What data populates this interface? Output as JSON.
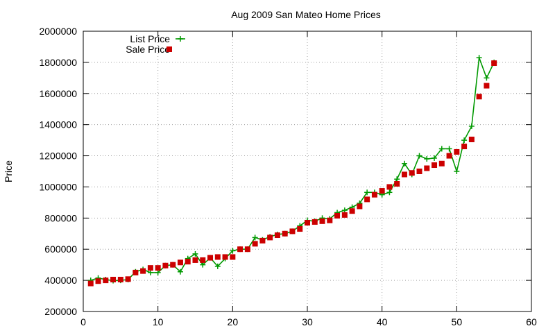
{
  "chart_data": {
    "type": "line",
    "title": "Aug 2009 San Mateo Home Prices",
    "xlabel": "",
    "ylabel": "Price",
    "xlim": [
      0,
      60
    ],
    "ylim": [
      200000,
      2000000
    ],
    "xticks": [
      "0",
      "10",
      "20",
      "30",
      "40",
      "50",
      "60"
    ],
    "yticks": [
      "200000",
      "400000",
      "600000",
      "800000",
      "1000000",
      "1200000",
      "1400000",
      "1600000",
      "1800000",
      "2000000"
    ],
    "grid": true,
    "legend_position": "top-left",
    "series": [
      {
        "name": "List Price",
        "style": "line-plus",
        "color": "#009900",
        "x": [
          1,
          2,
          3,
          4,
          5,
          6,
          7,
          8,
          9,
          10,
          11,
          12,
          13,
          14,
          15,
          16,
          17,
          18,
          19,
          20,
          21,
          22,
          23,
          24,
          25,
          26,
          27,
          28,
          29,
          30,
          31,
          32,
          33,
          34,
          35,
          36,
          37,
          38,
          39,
          40,
          41,
          42,
          43,
          44,
          45,
          46,
          47,
          48,
          49,
          50,
          51,
          52,
          53,
          54,
          55
        ],
        "y": [
          400000,
          415000,
          405000,
          398000,
          400000,
          405000,
          455000,
          470000,
          450000,
          450000,
          495000,
          500000,
          455000,
          540000,
          570000,
          500000,
          545000,
          490000,
          540000,
          590000,
          600000,
          600000,
          675000,
          660000,
          680000,
          695000,
          700000,
          715000,
          750000,
          785000,
          780000,
          800000,
          795000,
          835000,
          850000,
          870000,
          895000,
          965000,
          965000,
          950000,
          965000,
          1050000,
          1150000,
          1080000,
          1200000,
          1180000,
          1185000,
          1245000,
          1245000,
          1100000,
          1300000,
          1390000,
          1830000,
          1700000,
          1800000
        ]
      },
      {
        "name": "Sale Price",
        "style": "square",
        "color": "#cc0000",
        "x": [
          1,
          2,
          3,
          4,
          5,
          6,
          7,
          8,
          9,
          10,
          11,
          12,
          13,
          14,
          15,
          16,
          17,
          18,
          19,
          20,
          21,
          22,
          23,
          24,
          25,
          26,
          27,
          28,
          29,
          30,
          31,
          32,
          33,
          34,
          35,
          36,
          37,
          38,
          39,
          40,
          41,
          42,
          43,
          44,
          45,
          46,
          47,
          48,
          49,
          50,
          51,
          52,
          53,
          54,
          55
        ],
        "y": [
          380000,
          395000,
          400000,
          405000,
          405000,
          408000,
          450000,
          460000,
          480000,
          480000,
          495000,
          500000,
          515000,
          520000,
          530000,
          530000,
          545000,
          550000,
          550000,
          550000,
          600000,
          600000,
          635000,
          655000,
          675000,
          690000,
          700000,
          715000,
          730000,
          770000,
          775000,
          780000,
          785000,
          815000,
          820000,
          845000,
          875000,
          920000,
          950000,
          975000,
          1000000,
          1020000,
          1080000,
          1090000,
          1100000,
          1120000,
          1140000,
          1150000,
          1200000,
          1225000,
          1260000,
          1305000,
          1580000,
          1650000,
          1795000
        ]
      }
    ]
  }
}
